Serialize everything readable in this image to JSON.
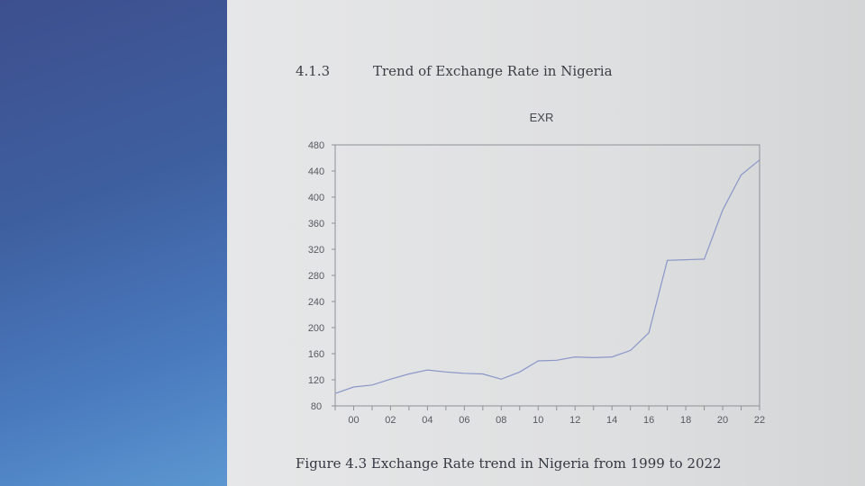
{
  "document": {
    "section_number": "4.1.3",
    "section_title": "Trend of Exchange Rate in Nigeria",
    "figure_caption": "Figure 4.3 Exchange Rate trend in Nigeria from 1999 to 2022"
  },
  "colors": {
    "line": "#8a96c8",
    "axis": "#8d9297",
    "screen_left": "#3e5f9f"
  },
  "chart_data": {
    "type": "line",
    "title": "EXR",
    "xlabel": "",
    "ylabel": "",
    "x_tick_labels": [
      "00",
      "02",
      "04",
      "06",
      "08",
      "10",
      "12",
      "14",
      "16",
      "18",
      "20",
      "22"
    ],
    "x_tick_values": [
      2000,
      2002,
      2004,
      2006,
      2008,
      2010,
      2012,
      2014,
      2016,
      2018,
      2020,
      2022
    ],
    "xlim": [
      1999,
      2022
    ],
    "y_ticks": [
      80,
      120,
      160,
      200,
      240,
      280,
      320,
      360,
      400,
      440,
      480
    ],
    "ylim": [
      80,
      480
    ],
    "grid": false,
    "legend": "none",
    "series": [
      {
        "x": [
          1999,
          2000,
          2001,
          2002,
          2003,
          2004,
          2005,
          2006,
          2007,
          2008,
          2009,
          2010,
          2011,
          2012,
          2013,
          2014,
          2015,
          2016,
          2017,
          2018,
          2019,
          2020,
          2021,
          2022
        ],
        "values": [
          99,
          109,
          112,
          121,
          129,
          135,
          132,
          130,
          129,
          121,
          132,
          149,
          150,
          155,
          154,
          155,
          165,
          192,
          303,
          304,
          305,
          380,
          434,
          457
        ]
      }
    ]
  }
}
